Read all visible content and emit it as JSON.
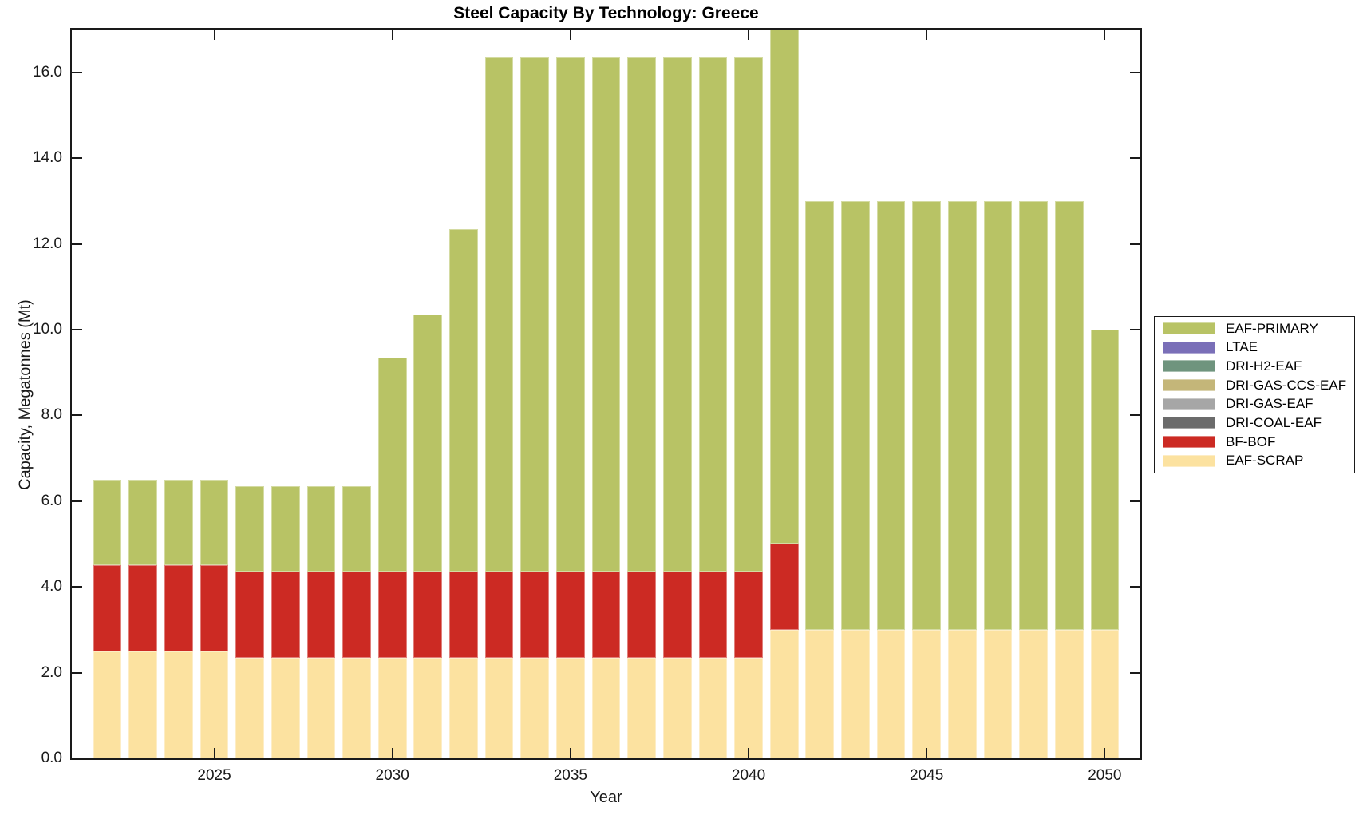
{
  "title": "Steel Capacity By Technology: Greece",
  "colors": {
    "background": "#ffffff",
    "axis": "#1a1a1a",
    "eaf_primary": "#b8c365",
    "ltae": "#7a6fb8",
    "dri_h2_eaf": "#6f947e",
    "dri_gas_ccs_eaf": "#c4b679",
    "dri_gas_eaf": "#a6a6a6",
    "dri_coal_eaf": "#6b6b6b",
    "bf_bof": "#cc2a23",
    "eaf_scrap": "#fce2a0"
  },
  "axes": {
    "xlabel": "Year",
    "ylabel": "Capacity, Megatonnes (Mt)",
    "x_tick_years": [
      2025,
      2030,
      2035,
      2040,
      2045,
      2050
    ],
    "x_tick_labels": [
      "2025",
      "2030",
      "2035",
      "2040",
      "2045",
      "2050"
    ],
    "y_tick_values": [
      0,
      2,
      4,
      6,
      8,
      10,
      12,
      14,
      16
    ],
    "y_tick_labels": [
      "0.0",
      "2.0",
      "4.0",
      "6.0",
      "8.0",
      "10.0",
      "12.0",
      "14.0",
      "16.0"
    ],
    "xlim": [
      2021,
      2051
    ],
    "ylim": [
      0,
      17
    ]
  },
  "legend": {
    "entries": [
      {
        "label": "EAF-PRIMARY",
        "color": "#b8c365"
      },
      {
        "label": "LTAE",
        "color": "#7a6fb8"
      },
      {
        "label": "DRI-H2-EAF",
        "color": "#6f947e"
      },
      {
        "label": "DRI-GAS-CCS-EAF",
        "color": "#c4b679"
      },
      {
        "label": "DRI-GAS-EAF",
        "color": "#a6a6a6"
      },
      {
        "label": "DRI-COAL-EAF",
        "color": "#6b6b6b"
      },
      {
        "label": "BF-BOF",
        "color": "#cc2a23"
      },
      {
        "label": "EAF-SCRAP",
        "color": "#fce2a0"
      }
    ]
  },
  "chart_data": {
    "type": "bar",
    "stacked": true,
    "title": "Steel Capacity By Technology: Greece",
    "xlabel": "Year",
    "ylabel": "Capacity, Megatonnes (Mt)",
    "legend_position": "right-outside",
    "grid": false,
    "xlim": [
      2021,
      2051
    ],
    "ylim": [
      0,
      17
    ],
    "bar_width_years": 0.8,
    "x": [
      2022,
      2023,
      2024,
      2025,
      2026,
      2027,
      2028,
      2029,
      2030,
      2031,
      2032,
      2033,
      2034,
      2035,
      2036,
      2037,
      2038,
      2039,
      2040,
      2041,
      2042,
      2043,
      2044,
      2045,
      2046,
      2047,
      2048,
      2049,
      2050
    ],
    "series": [
      {
        "name": "EAF-SCRAP",
        "color": "#fce2a0",
        "values": [
          2.5,
          2.5,
          2.5,
          2.5,
          2.35,
          2.35,
          2.35,
          2.35,
          2.35,
          2.35,
          2.35,
          2.35,
          2.35,
          2.35,
          2.35,
          2.35,
          2.35,
          2.35,
          2.35,
          3.0,
          3.0,
          3.0,
          3.0,
          3.0,
          3.0,
          3.0,
          3.0,
          3.0,
          3.0
        ]
      },
      {
        "name": "BF-BOF",
        "color": "#cc2a23",
        "values": [
          2.0,
          2.0,
          2.0,
          2.0,
          2.0,
          2.0,
          2.0,
          2.0,
          2.0,
          2.0,
          2.0,
          2.0,
          2.0,
          2.0,
          2.0,
          2.0,
          2.0,
          2.0,
          2.0,
          2.0,
          0,
          0,
          0,
          0,
          0,
          0,
          0,
          0,
          0
        ]
      },
      {
        "name": "DRI-COAL-EAF",
        "color": "#6b6b6b",
        "values": [
          0,
          0,
          0,
          0,
          0,
          0,
          0,
          0,
          0,
          0,
          0,
          0,
          0,
          0,
          0,
          0,
          0,
          0,
          0,
          0,
          0,
          0,
          0,
          0,
          0,
          0,
          0,
          0,
          0
        ]
      },
      {
        "name": "DRI-GAS-EAF",
        "color": "#a6a6a6",
        "values": [
          0,
          0,
          0,
          0,
          0,
          0,
          0,
          0,
          0,
          0,
          0,
          0,
          0,
          0,
          0,
          0,
          0,
          0,
          0,
          0,
          0,
          0,
          0,
          0,
          0,
          0,
          0,
          0,
          0
        ]
      },
      {
        "name": "DRI-GAS-CCS-EAF",
        "color": "#c4b679",
        "values": [
          0,
          0,
          0,
          0,
          0,
          0,
          0,
          0,
          0,
          0,
          0,
          0,
          0,
          0,
          0,
          0,
          0,
          0,
          0,
          0,
          0,
          0,
          0,
          0,
          0,
          0,
          0,
          0,
          0
        ]
      },
      {
        "name": "DRI-H2-EAF",
        "color": "#6f947e",
        "values": [
          0,
          0,
          0,
          0,
          0,
          0,
          0,
          0,
          0,
          0,
          0,
          0,
          0,
          0,
          0,
          0,
          0,
          0,
          0,
          0,
          0,
          0,
          0,
          0,
          0,
          0,
          0,
          0,
          0
        ]
      },
      {
        "name": "LTAE",
        "color": "#7a6fb8",
        "values": [
          0,
          0,
          0,
          0,
          0,
          0,
          0,
          0,
          0,
          0,
          0,
          0,
          0,
          0,
          0,
          0,
          0,
          0,
          0,
          0,
          0,
          0,
          0,
          0,
          0,
          0,
          0,
          0,
          0
        ]
      },
      {
        "name": "EAF-PRIMARY",
        "color": "#b8c365",
        "values": [
          2.0,
          2.0,
          2.0,
          2.0,
          2.0,
          2.0,
          2.0,
          2.0,
          5.0,
          6.0,
          8.0,
          12.0,
          12.0,
          12.0,
          12.0,
          12.0,
          12.0,
          12.0,
          12.0,
          12.0,
          10.0,
          10.0,
          10.0,
          10.0,
          10.0,
          10.0,
          10.0,
          10.0,
          7.0
        ]
      }
    ],
    "totals": [
      6.5,
      6.5,
      6.5,
      6.5,
      6.35,
      6.35,
      6.35,
      6.35,
      9.35,
      10.35,
      12.35,
      16.35,
      16.35,
      16.35,
      16.35,
      16.35,
      16.35,
      16.35,
      16.35,
      17.0,
      13.0,
      13.0,
      13.0,
      13.0,
      13.0,
      13.0,
      13.0,
      13.0,
      10.0
    ]
  }
}
